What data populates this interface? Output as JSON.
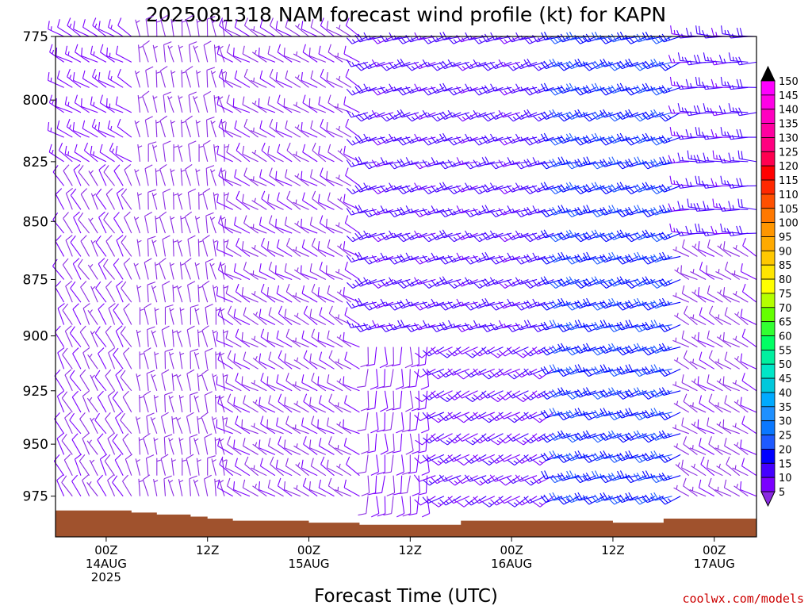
{
  "chart_data": {
    "type": "wind_barbs",
    "title": "2025081318 NAM forecast wind profile (kt) for KAPN",
    "xlabel": "Forecast Time (UTC)",
    "ylabel": "",
    "pressure_levels": [
      775,
      800,
      825,
      850,
      875,
      900,
      925,
      950,
      975
    ],
    "y_axis": {
      "top_hpa": 775,
      "bottom_hpa": 995,
      "scale": "log-pressure"
    },
    "x_axis": {
      "start": "2025-08-13 18Z",
      "end": "2025-08-17 05Z",
      "step_hours": 1,
      "ticks": [
        {
          "time": "2025-08-14 00Z",
          "line1": "00Z",
          "line2": "14AUG",
          "line3": "2025"
        },
        {
          "time": "2025-08-14 12Z",
          "line1": "12Z",
          "line2": "",
          "line3": ""
        },
        {
          "time": "2025-08-15 00Z",
          "line1": "00Z",
          "line2": "15AUG",
          "line3": ""
        },
        {
          "time": "2025-08-15 12Z",
          "line1": "12Z",
          "line2": "",
          "line3": ""
        },
        {
          "time": "2025-08-16 00Z",
          "line1": "00Z",
          "line2": "16AUG",
          "line3": ""
        },
        {
          "time": "2025-08-16 12Z",
          "line1": "12Z",
          "line2": "",
          "line3": ""
        },
        {
          "time": "2025-08-17 00Z",
          "line1": "00Z",
          "line2": "17AUG",
          "line3": ""
        }
      ]
    },
    "terrain_pressure_hpa": [
      {
        "time": "2025-08-13 18Z",
        "p": 982
      },
      {
        "time": "2025-08-14 00Z",
        "p": 982
      },
      {
        "time": "2025-08-14 03Z",
        "p": 983
      },
      {
        "time": "2025-08-14 06Z",
        "p": 984
      },
      {
        "time": "2025-08-14 10Z",
        "p": 985
      },
      {
        "time": "2025-08-14 12Z",
        "p": 986
      },
      {
        "time": "2025-08-14 15Z",
        "p": 987
      },
      {
        "time": "2025-08-15 00Z",
        "p": 988
      },
      {
        "time": "2025-08-15 06Z",
        "p": 989
      },
      {
        "time": "2025-08-15 12Z",
        "p": 989
      },
      {
        "time": "2025-08-15 18Z",
        "p": 987
      },
      {
        "time": "2025-08-16 12Z",
        "p": 988
      },
      {
        "time": "2025-08-16 18Z",
        "p": 986
      },
      {
        "time": "2025-08-17 05Z",
        "p": 986
      }
    ],
    "wind_regimes": [
      {
        "from": "2025-08-13 18Z",
        "to": "2025-08-14 03Z",
        "pmin": 775,
        "pmax": 830,
        "dir": 300,
        "speed": 12
      },
      {
        "from": "2025-08-13 18Z",
        "to": "2025-08-14 03Z",
        "pmin": 830,
        "pmax": 995,
        "dir": 330,
        "speed": 9
      },
      {
        "from": "2025-08-14 03Z",
        "to": "2025-08-14 14Z",
        "pmin": 775,
        "pmax": 995,
        "dir": 350,
        "speed": 7
      },
      {
        "from": "2025-08-14 14Z",
        "to": "2025-08-15 06Z",
        "pmin": 775,
        "pmax": 995,
        "dir": 300,
        "speed": 9
      },
      {
        "from": "2025-08-15 06Z",
        "to": "2025-08-15 14Z",
        "pmin": 900,
        "pmax": 995,
        "dir": 180,
        "speed": 10
      },
      {
        "from": "2025-08-15 06Z",
        "to": "2025-08-16 05Z",
        "pmin": 775,
        "pmax": 900,
        "dir": 250,
        "speed": 16
      },
      {
        "from": "2025-08-15 14Z",
        "to": "2025-08-16 05Z",
        "pmin": 900,
        "pmax": 995,
        "dir": 240,
        "speed": 14
      },
      {
        "from": "2025-08-16 05Z",
        "to": "2025-08-16 20Z",
        "pmin": 775,
        "pmax": 995,
        "dir": 250,
        "speed": 24
      },
      {
        "from": "2025-08-16 20Z",
        "to": "2025-08-17 05Z",
        "pmin": 775,
        "pmax": 860,
        "dir": 270,
        "speed": 16
      },
      {
        "from": "2025-08-16 20Z",
        "to": "2025-08-17 05Z",
        "pmin": 860,
        "pmax": 995,
        "dir": 300,
        "speed": 8
      }
    ],
    "colorbar": {
      "levels": [
        5,
        10,
        15,
        20,
        25,
        30,
        35,
        40,
        45,
        50,
        55,
        60,
        65,
        70,
        75,
        80,
        85,
        90,
        95,
        100,
        105,
        110,
        115,
        120,
        125,
        130,
        135,
        140,
        145,
        150
      ],
      "colors": [
        "#8a2be2",
        "#7b00ff",
        "#4400ff",
        "#0000ff",
        "#1e5aff",
        "#0a78ff",
        "#1e90ff",
        "#00aaff",
        "#00c8dc",
        "#00e6c8",
        "#00f0a0",
        "#00ff64",
        "#32ff32",
        "#64ff00",
        "#b4ff00",
        "#ffff00",
        "#ffe600",
        "#ffc800",
        "#ffaa00",
        "#ff9600",
        "#ff7800",
        "#ff5000",
        "#ff2800",
        "#ff0000",
        "#ff0050",
        "#ff0080",
        "#ff00a0",
        "#ff00c0",
        "#ff00e6",
        "#ff00ff"
      ],
      "under_color": "#8a2be2",
      "over_color": "#000000"
    },
    "terrain_color": "#a0522d",
    "credit": "coolwx.com/models"
  }
}
